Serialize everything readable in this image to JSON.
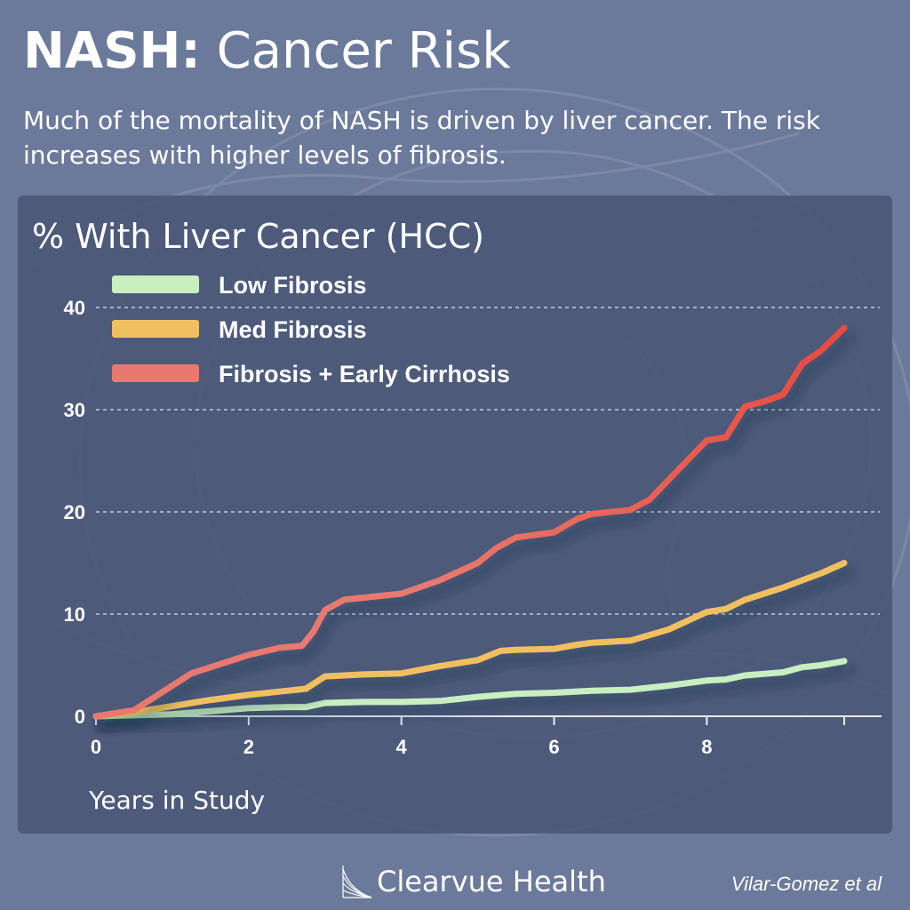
{
  "page": {
    "title_bold": "NASH:",
    "title_light": "Cancer Risk",
    "subtitle": "Much of the mortality of NASH is driven by liver cancer. The risk increases with higher levels of fibrosis.",
    "brand": "Clearvue Health",
    "citation": "Vilar-Gomez et al",
    "background_color": "#6b7a9a",
    "panel_color": "#485474"
  },
  "chart_data": {
    "type": "line",
    "title": "% With Liver Cancer (HCC)",
    "xlabel": "Years in Study",
    "ylabel": "",
    "xlim": [
      0,
      9.8
    ],
    "ylim": [
      0,
      40
    ],
    "xticks": [
      0,
      2,
      4,
      6,
      8
    ],
    "yticks": [
      0,
      10,
      20,
      30,
      40
    ],
    "grid": "horizontal dashed",
    "legend_position": "top-left",
    "series": [
      {
        "name": "Low Fibrosis",
        "color": "#c8efc0",
        "x": [
          0,
          0.5,
          1,
          1.5,
          2,
          2.5,
          2.75,
          3,
          3.5,
          4,
          4.5,
          5,
          5.5,
          6,
          6.5,
          7,
          7.5,
          8,
          8.25,
          8.5,
          9,
          9.25,
          9.5,
          9.8
        ],
        "y": [
          0,
          0.1,
          0.2,
          0.5,
          0.8,
          0.9,
          0.9,
          1.3,
          1.4,
          1.4,
          1.5,
          1.9,
          2.2,
          2.3,
          2.5,
          2.6,
          3.0,
          3.5,
          3.6,
          4.0,
          4.3,
          4.8,
          5.0,
          5.4
        ]
      },
      {
        "name": "Med Fibrosis",
        "color": "#f0c060",
        "x": [
          0,
          0.5,
          1,
          1.5,
          2,
          2.5,
          2.75,
          3,
          3.5,
          4,
          4.5,
          5,
          5.3,
          5.5,
          6,
          6.3,
          6.5,
          7,
          7.5,
          8,
          8.25,
          8.5,
          8.75,
          9,
          9.25,
          9.5,
          9.8
        ],
        "y": [
          0,
          0.4,
          1.0,
          1.6,
          2.1,
          2.5,
          2.7,
          3.9,
          4.1,
          4.2,
          4.9,
          5.5,
          6.4,
          6.5,
          6.6,
          7.0,
          7.2,
          7.4,
          8.5,
          10.2,
          10.5,
          11.4,
          12.0,
          12.6,
          13.3,
          14.0,
          15.0
        ]
      },
      {
        "name": "Fibrosis + Early Cirrhosis",
        "color": "#e87870",
        "line_color_end": "#e8493f",
        "x": [
          0,
          0.5,
          1.25,
          2,
          2.4,
          2.7,
          2.85,
          3,
          3.25,
          4,
          4.5,
          5,
          5.25,
          5.5,
          6,
          6.3,
          6.5,
          7,
          7.25,
          8,
          8.25,
          8.5,
          8.75,
          9,
          9.25,
          9.5,
          9.8
        ],
        "y": [
          0,
          0.6,
          4.2,
          6.0,
          6.7,
          6.9,
          8.3,
          10.4,
          11.4,
          12.0,
          13.3,
          15.0,
          16.5,
          17.5,
          18.0,
          19.3,
          19.8,
          20.2,
          21.2,
          27.0,
          27.3,
          30.3,
          30.8,
          31.5,
          34.5,
          35.8,
          38.0
        ]
      }
    ]
  }
}
